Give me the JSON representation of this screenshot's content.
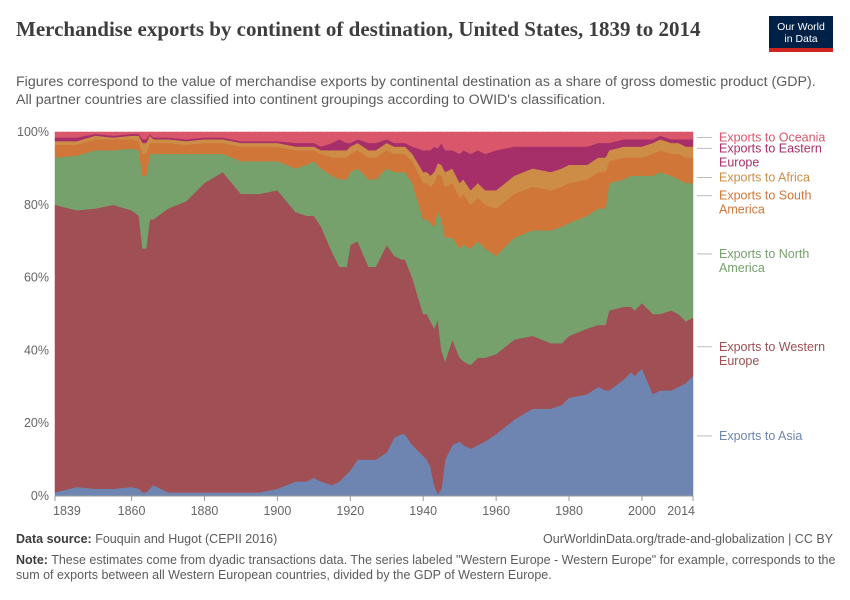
{
  "header": {
    "title": "Merchandise exports by continent of destination, United States, 1839 to 2014",
    "subtitle": "Figures correspond to the value of merchandise exports by continental destination as a share of gross domestic product (GDP). All partner countries are classified into continent groupings according to OWID's classification.",
    "logo_line1": "Our World",
    "logo_line2": "in Data"
  },
  "footer": {
    "source_label": "Data source:",
    "source_text": "Fouquin and Hugot (CEPII 2016)",
    "url_text": "OurWorldinData.org/trade-and-globalization | CC BY",
    "note_label": "Note:",
    "note_text": "These estimates come from dyadic transactions data. The series labeled \"Western Europe - Western Europe\" for example, corresponds to the sum of exports between all Western European countries, divided by the GDP of Western Europe."
  },
  "chart_data": {
    "type": "area",
    "stacked": true,
    "normalized_percent": true,
    "x": [
      1839,
      1845,
      1850,
      1855,
      1860,
      1862,
      1863,
      1864,
      1865,
      1866,
      1870,
      1875,
      1880,
      1885,
      1890,
      1895,
      1900,
      1905,
      1908,
      1910,
      1912,
      1915,
      1917,
      1919,
      1920,
      1922,
      1925,
      1927,
      1930,
      1932,
      1934,
      1935,
      1937,
      1940,
      1941,
      1942,
      1943,
      1944,
      1945,
      1946,
      1948,
      1950,
      1951,
      1953,
      1955,
      1957,
      1960,
      1965,
      1970,
      1975,
      1978,
      1980,
      1985,
      1988,
      1990,
      1991,
      1995,
      1997,
      1998,
      2000,
      2003,
      2005,
      2008,
      2010,
      2012,
      2014
    ],
    "series": [
      {
        "name": "Exports to Asia",
        "color": "#6d85b0",
        "values": [
          1,
          2.5,
          2,
          2,
          2.5,
          2,
          1,
          1,
          2,
          3,
          1,
          1,
          1,
          1,
          1,
          1,
          2,
          4,
          4,
          5,
          4,
          3,
          4,
          6,
          7,
          10,
          10,
          10,
          12,
          16,
          17,
          17,
          14,
          11,
          10,
          8,
          3,
          0.5,
          2,
          10,
          14,
          15,
          14,
          13,
          14,
          15,
          17,
          21,
          24,
          24,
          25,
          27,
          28,
          30,
          29,
          29,
          32,
          34,
          33,
          35,
          28,
          29,
          29,
          30,
          31,
          33
        ]
      },
      {
        "name": "Exports to Western Europe",
        "color": "#a04f54",
        "values": [
          79,
          76,
          77,
          78,
          76,
          75,
          67,
          67,
          74,
          73,
          78,
          80,
          85,
          88,
          82,
          82,
          82,
          74,
          73,
          72,
          70,
          64,
          59,
          57,
          62,
          60,
          53,
          53,
          57,
          50,
          48,
          48,
          46,
          39,
          40,
          40,
          43,
          48,
          38,
          27,
          29,
          23,
          23,
          23,
          24,
          23,
          22,
          22,
          20,
          18,
          17,
          17,
          18,
          17,
          18,
          22,
          20,
          18,
          18,
          18,
          22,
          21,
          22,
          20,
          17,
          16
        ]
      },
      {
        "name": "Exports to North America",
        "color": "#76a06c",
        "values": [
          13,
          15,
          16,
          15,
          17,
          18,
          20,
          20,
          18,
          18,
          15,
          13,
          8,
          5,
          9,
          9,
          8,
          12,
          14,
          15,
          16,
          21,
          24,
          24,
          20,
          20,
          24,
          24,
          21,
          23,
          24,
          24,
          26,
          26,
          26,
          27,
          28,
          30,
          36,
          34,
          28,
          30,
          32,
          32,
          32,
          30,
          27,
          28,
          29,
          31,
          32,
          31,
          31,
          32,
          32,
          35,
          35,
          36,
          37,
          35,
          38,
          39,
          37,
          37,
          38,
          37
        ]
      },
      {
        "name": "Exports to South America",
        "color": "#d07638",
        "values": [
          3.5,
          3,
          3,
          3,
          2.5,
          2.5,
          6,
          6,
          3,
          3,
          3,
          2.5,
          3,
          3,
          4,
          4,
          4,
          5,
          4,
          3,
          4,
          5,
          6,
          6,
          5,
          5,
          6,
          6,
          5,
          5,
          5,
          5,
          6,
          10,
          10,
          10,
          12,
          10,
          12,
          14,
          15,
          14,
          14,
          12,
          12,
          12,
          13,
          12,
          12,
          11,
          11,
          11,
          10,
          10,
          10,
          6,
          6,
          5,
          5,
          5,
          6,
          6,
          6,
          7,
          7,
          7
        ]
      },
      {
        "name": "Exports to Africa",
        "color": "#cd8d46",
        "values": [
          1,
          1,
          1,
          0.5,
          1,
          1.5,
          3,
          3,
          2,
          1,
          1,
          1,
          1,
          1,
          1,
          1,
          1,
          1,
          1,
          1,
          1,
          2,
          2,
          2,
          2,
          2,
          2,
          2,
          2,
          2,
          2,
          2,
          2,
          3,
          3,
          3,
          3,
          3,
          3,
          4,
          4,
          4,
          4,
          4,
          4,
          4,
          5,
          5,
          5,
          5,
          5,
          5,
          4,
          4,
          4,
          3,
          3,
          3,
          3,
          3,
          3,
          3,
          3,
          3,
          3,
          3
        ]
      },
      {
        "name": "Exports to Eastern Europe",
        "color": "#a62f6a",
        "values": [
          1,
          1,
          0.5,
          0.5,
          0.5,
          0.5,
          1,
          1,
          0.5,
          0.5,
          0.5,
          0.5,
          0.5,
          0.5,
          0.5,
          0.5,
          0.5,
          1,
          1,
          1,
          1,
          2,
          3,
          2,
          1,
          1,
          2,
          2,
          1,
          1,
          1,
          1,
          2,
          6,
          6,
          7,
          7,
          4,
          6,
          6,
          5,
          8,
          8,
          10,
          9,
          10,
          11,
          8,
          6,
          7,
          6,
          5,
          5,
          4,
          4,
          2,
          2,
          2,
          2,
          2,
          1,
          1,
          1,
          1,
          2,
          2
        ]
      },
      {
        "name": "Exports to Oceania",
        "color": "#d9566b",
        "values": [
          1.5,
          1.5,
          0.5,
          1,
          0.5,
          0.5,
          2,
          2,
          0.5,
          1.5,
          1.5,
          2,
          1.5,
          1.5,
          2.5,
          2.5,
          2.5,
          3,
          3,
          3,
          4,
          3,
          2,
          3,
          3,
          2,
          3,
          3,
          2,
          3,
          3,
          3,
          4,
          5,
          5,
          5,
          4,
          4.5,
          3,
          5,
          5,
          6,
          5,
          6,
          5,
          6,
          5,
          4,
          4,
          4,
          4,
          4,
          4,
          3,
          3,
          3,
          2,
          2,
          2,
          2,
          2,
          1,
          2,
          2,
          2,
          2
        ]
      }
    ],
    "x_ticks": [
      "1839",
      "1860",
      "1880",
      "1900",
      "1920",
      "1940",
      "1960",
      "1980",
      "2000",
      "2014"
    ],
    "x_tick_values": [
      1839,
      1860,
      1880,
      1900,
      1920,
      1940,
      1960,
      1980,
      2000,
      2014
    ],
    "y_ticks": [
      "0%",
      "20%",
      "40%",
      "60%",
      "80%",
      "100%"
    ],
    "y_tick_values": [
      0,
      20,
      40,
      60,
      80,
      100
    ],
    "xlim": [
      1839,
      2014
    ],
    "ylim": [
      0,
      100
    ],
    "legend_placement": "right, inline labels",
    "legend": [
      {
        "lines": [
          "Exports to Oceania"
        ],
        "color": "#d9566b",
        "at": 98.5
      },
      {
        "lines": [
          "Exports to Eastern",
          "Europe"
        ],
        "color": "#a62f6a",
        "at": 95.5
      },
      {
        "lines": [
          "Exports to Africa"
        ],
        "color": "#cd8d46",
        "at": 87.5
      },
      {
        "lines": [
          "Exports to South",
          "America"
        ],
        "color": "#d07638",
        "at": 82.5
      },
      {
        "lines": [
          "Exports to North",
          "America"
        ],
        "color": "#76a06c",
        "at": 66.5
      },
      {
        "lines": [
          "Exports to Western",
          "Europe"
        ],
        "color": "#a04f54",
        "at": 41
      },
      {
        "lines": [
          "Exports to Asia"
        ],
        "color": "#6d85b0",
        "at": 16.5
      }
    ],
    "grid": true
  }
}
